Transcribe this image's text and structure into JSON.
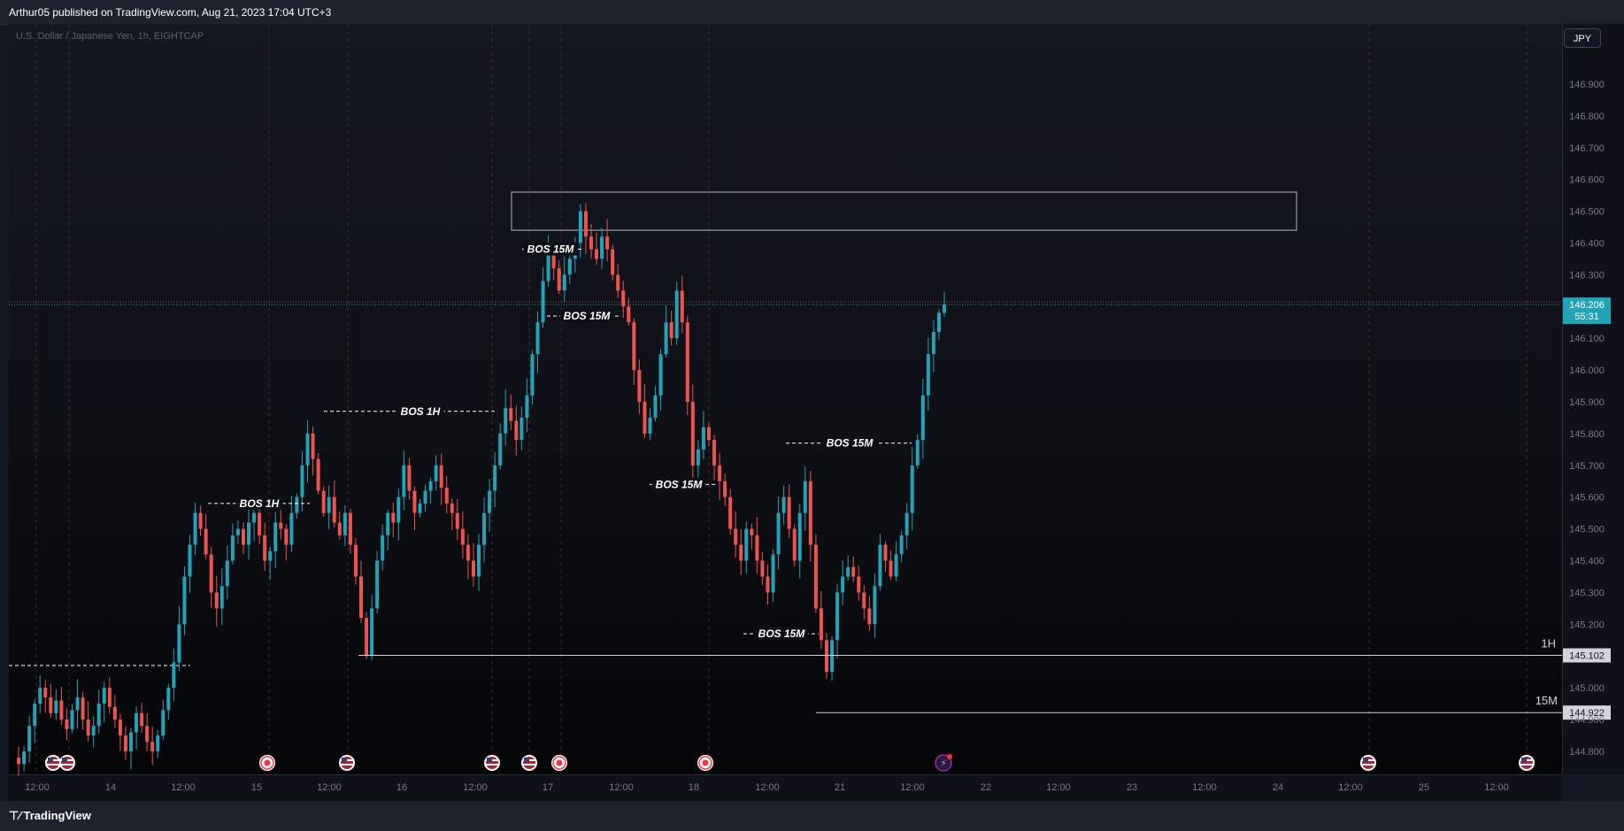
{
  "publisher_line": "Arthur05 published on TradingView.com, Aug 21, 2023 17:04 UTC+3",
  "symbol_info": "U.S. Dollar / Japanese Yen, 1h, EIGHTCAP",
  "currency_button": "JPY",
  "footer_brand": "TradingView",
  "colors": {
    "up": "#26a69a",
    "up_body": "#22a3b8",
    "down": "#ef5350",
    "background": "#131722",
    "price_label_bg": "#089981",
    "level_label_bg": "#d1d4dc"
  },
  "chart_data": {
    "type": "candlestick",
    "symbol": "USDJPY",
    "timeframe": "1h",
    "ylim": [
      144.74,
      147.02
    ],
    "y_ticks": [
      "146.900",
      "146.800",
      "146.700",
      "146.600",
      "146.500",
      "146.400",
      "146.300",
      "146.100",
      "146.000",
      "145.900",
      "145.800",
      "145.700",
      "145.600",
      "145.500",
      "145.400",
      "145.300",
      "145.200",
      "145.000",
      "144.900",
      "144.800"
    ],
    "x_ticks": [
      "12:00",
      "14",
      "12:00",
      "15",
      "12:00",
      "16",
      "12:00",
      "17",
      "12:00",
      "18",
      "12:00",
      "21",
      "12:00",
      "22",
      "12:00",
      "23",
      "12:00",
      "24",
      "12:00",
      "25",
      "12:00"
    ],
    "current_price": {
      "label": "146.206",
      "countdown": "55:31",
      "value": 146.206
    },
    "levels": [
      {
        "name": "1H",
        "value": 145.102,
        "label": "145.102"
      },
      {
        "name": "15M",
        "value": 144.922,
        "label": "144.922"
      }
    ],
    "zone": {
      "top": 146.56,
      "bottom": 146.44
    },
    "bos_labels": [
      {
        "text": "BOS 1H",
        "value": 145.58
      },
      {
        "text": "BOS 1H",
        "value": 145.87
      },
      {
        "text": "BOS 15M",
        "value": 146.38
      },
      {
        "text": "BOS 15M",
        "value": 146.17
      },
      {
        "text": "BOS 15M",
        "value": 145.64
      },
      {
        "text": "BOS 15M",
        "value": 145.77
      },
      {
        "text": "BOS 15M",
        "value": 145.17
      }
    ],
    "candle_path": [
      144.78,
      144.76,
      144.8,
      144.88,
      144.95,
      145.0,
      144.97,
      144.92,
      144.96,
      144.9,
      144.87,
      144.93,
      144.97,
      144.9,
      144.85,
      144.88,
      144.95,
      145.0,
      144.94,
      144.9,
      144.85,
      144.8,
      144.86,
      144.92,
      144.88,
      144.83,
      144.8,
      144.85,
      144.93,
      145.0,
      145.08,
      145.2,
      145.35,
      145.45,
      145.55,
      145.5,
      145.42,
      145.3,
      145.25,
      145.32,
      145.4,
      145.48,
      145.5,
      145.45,
      145.52,
      145.55,
      145.48,
      145.4,
      145.43,
      145.52,
      145.5,
      145.45,
      145.55,
      145.6,
      145.7,
      145.8,
      145.72,
      145.62,
      145.55,
      145.6,
      145.52,
      145.48,
      145.55,
      145.45,
      145.35,
      145.22,
      145.1,
      145.25,
      145.4,
      145.48,
      145.55,
      145.52,
      145.6,
      145.7,
      145.62,
      145.55,
      145.58,
      145.62,
      145.65,
      145.7,
      145.63,
      145.58,
      145.55,
      145.5,
      145.45,
      145.4,
      145.35,
      145.45,
      145.55,
      145.62,
      145.7,
      145.8,
      145.88,
      145.84,
      145.78,
      145.85,
      145.92,
      146.05,
      146.15,
      146.28,
      146.38,
      146.32,
      146.25,
      146.3,
      146.35,
      146.4,
      146.5,
      146.42,
      146.38,
      146.35,
      146.42,
      146.38,
      146.3,
      146.25,
      146.2,
      146.15,
      146.0,
      145.9,
      145.8,
      145.85,
      145.92,
      146.05,
      146.15,
      146.1,
      146.25,
      146.15,
      145.9,
      145.7,
      145.75,
      145.82,
      145.78,
      145.7,
      145.65,
      145.6,
      145.5,
      145.45,
      145.4,
      145.5,
      145.48,
      145.4,
      145.35,
      145.3,
      145.42,
      145.55,
      145.6,
      145.5,
      145.4,
      145.55,
      145.65,
      145.45,
      145.25,
      145.15,
      145.05,
      145.15,
      145.3,
      145.35,
      145.38,
      145.35,
      145.3,
      145.25,
      145.2,
      145.32,
      145.45,
      145.4,
      145.35,
      145.42,
      145.48,
      145.55,
      145.7,
      145.78,
      145.92,
      146.05,
      146.12,
      146.18,
      146.206
    ]
  }
}
